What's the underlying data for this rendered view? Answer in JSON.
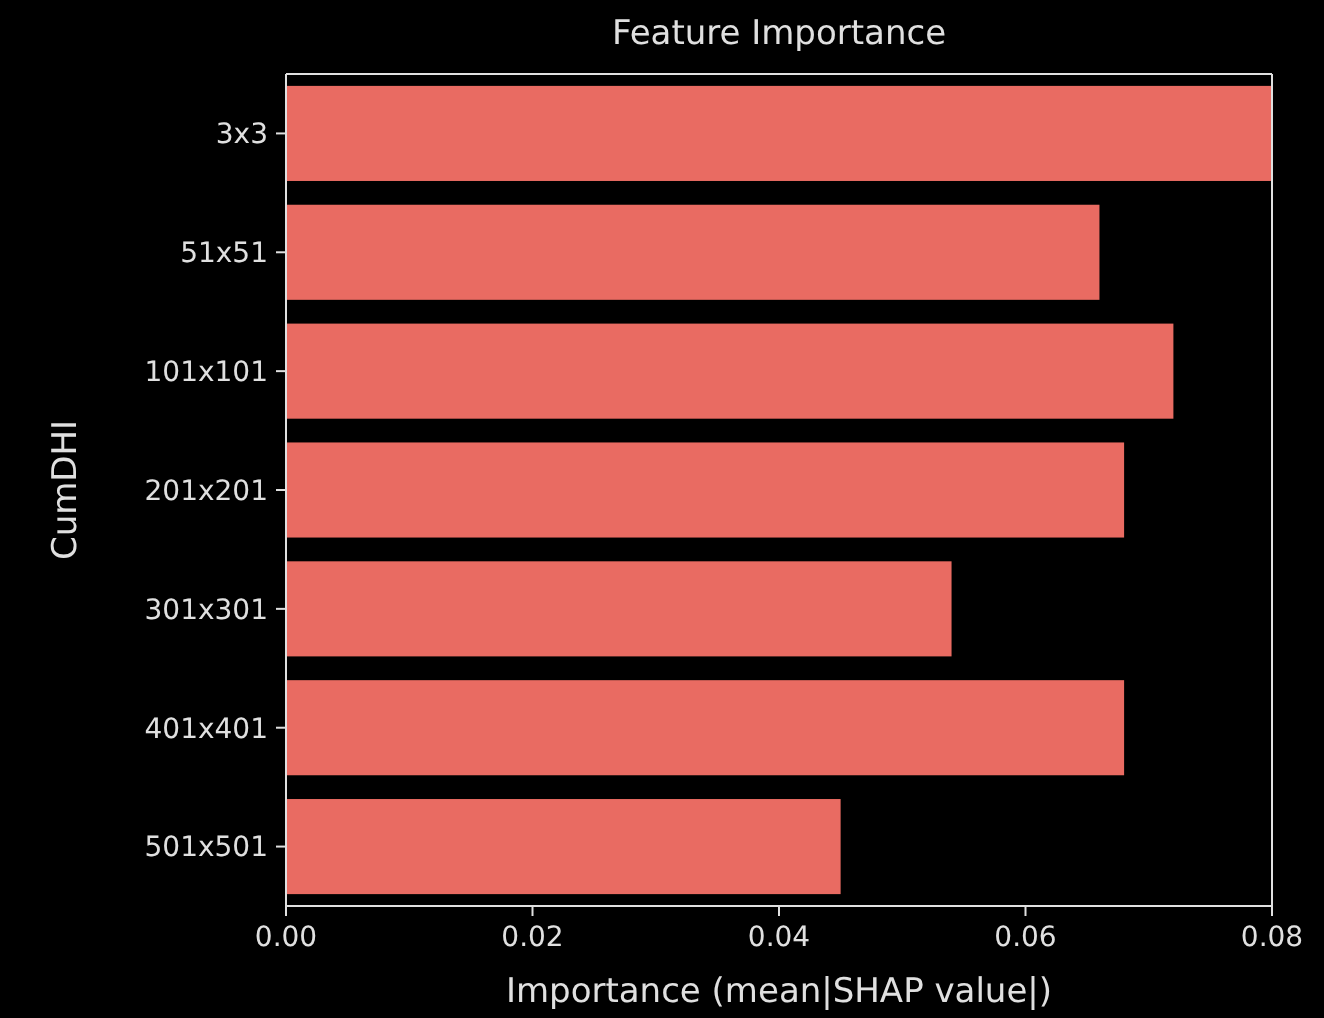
{
  "chart_data": {
    "type": "bar",
    "orientation": "horizontal",
    "title": "Feature Importance",
    "xlabel": "Importance (mean|SHAP value|)",
    "ylabel": "CumDHI",
    "categories": [
      "3x3",
      "51x51",
      "101x101",
      "201x201",
      "301x301",
      "401x401",
      "501x501"
    ],
    "values": [
      0.08,
      0.066,
      0.072,
      0.068,
      0.054,
      0.068,
      0.045
    ],
    "color": "#e96b62",
    "xlim": [
      0,
      0.08
    ],
    "xticks": [
      {
        "value": 0,
        "label": "0.00"
      },
      {
        "value": 0.02,
        "label": "0.02"
      },
      {
        "value": 0.04,
        "label": "0.04"
      },
      {
        "value": 0.06,
        "label": "0.06"
      },
      {
        "value": 0.08,
        "label": "0.08"
      }
    ],
    "grid": false
  }
}
